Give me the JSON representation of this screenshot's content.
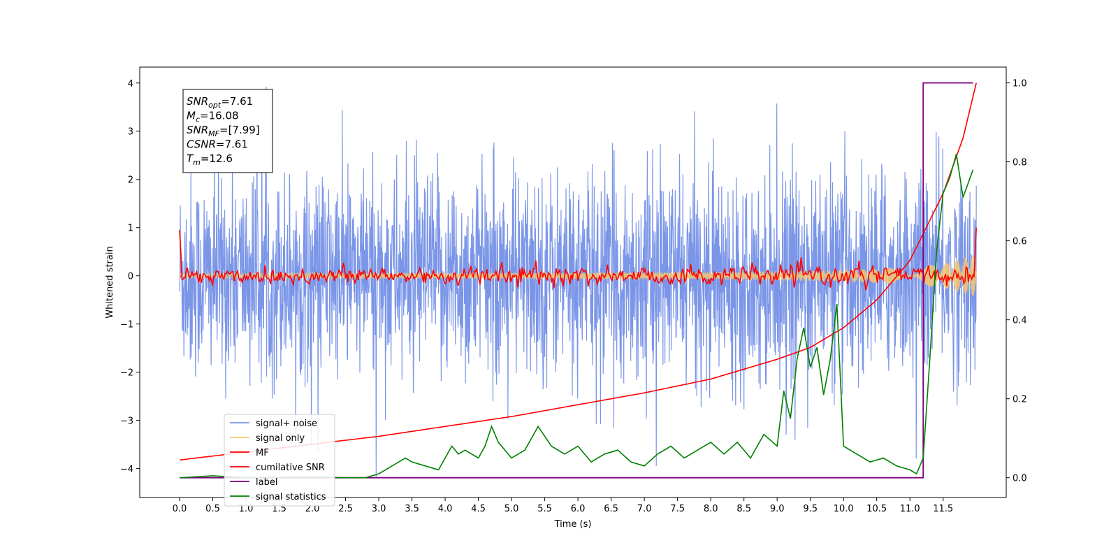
{
  "chart_data": {
    "type": "line",
    "xlabel": "Time (s)",
    "ylabel": "Whitened strain",
    "xlim": [
      -0.6,
      12.45
    ],
    "ylim": [
      -4.6,
      4.33
    ],
    "y2lim": [
      -0.05,
      1.04
    ],
    "xticks": [
      "0.0",
      "0.5",
      "1.0",
      "1.5",
      "2.0",
      "2.5",
      "3.0",
      "3.5",
      "4.0",
      "4.5",
      "5.0",
      "5.5",
      "6.0",
      "6.5",
      "7.0",
      "7.5",
      "8.0",
      "8.5",
      "9.0",
      "9.5",
      "10.0",
      "10.5",
      "11.0",
      "11.5"
    ],
    "yticks": [
      "4",
      "3",
      "2",
      "1",
      "0",
      "−1",
      "−2",
      "−3",
      "−4"
    ],
    "y2ticks": [
      "1.0",
      "0.8",
      "0.6",
      "0.4",
      "0.2",
      "0.0"
    ],
    "info_box": [
      {
        "var": "SNR",
        "sub": "opt",
        "value": "=7.61"
      },
      {
        "var": "M",
        "sub": "c",
        "value": "=16.08"
      },
      {
        "var": "SNR",
        "sub": "MF",
        "value": "=[7.99]"
      },
      {
        "var": "CSNR",
        "sub": "",
        "value": "=7.61"
      },
      {
        "var": "T",
        "sub": "m",
        "value": "=12.6"
      }
    ],
    "legend": {
      "position": "lower-left",
      "entries": [
        {
          "label": "signal+ noise",
          "color": "#7b96e8"
        },
        {
          "label": "signal only",
          "color": "#f5c771"
        },
        {
          "label": "MF",
          "color": "#ff0000"
        },
        {
          "label": "cumilative SNR",
          "color": "#ff0000"
        },
        {
          "label": "label",
          "color": "#800080"
        },
        {
          "label": "signal statistics",
          "color": "#008000"
        }
      ]
    },
    "series": [
      {
        "name": "signal+ noise",
        "axis": "left",
        "note": "noise band roughly between -2.5 and 2.5 with spikes up to 3.9 and down to -4.2",
        "x_range": [
          0,
          12.0
        ],
        "amplitude": 1.6
      },
      {
        "name": "signal only",
        "axis": "left",
        "note": "chirp with growing envelope",
        "envelope": {
          "x": [
            0,
            4,
            8,
            10,
            11,
            11.5,
            12.0
          ],
          "y": [
            0.05,
            0.06,
            0.08,
            0.12,
            0.18,
            0.25,
            0.45
          ]
        }
      },
      {
        "name": "MF",
        "axis": "left",
        "note": "matched-filter output oscillating around 0",
        "start_value": 0.95,
        "end_value": 1.0
      },
      {
        "name": "cumilative SNR",
        "axis": "right",
        "x": [
          0,
          1,
          2,
          3,
          4,
          5,
          6,
          7,
          8,
          9,
          9.5,
          10,
          10.5,
          11,
          11.5,
          11.8,
          12.0
        ],
        "y": [
          0.045,
          0.065,
          0.085,
          0.105,
          0.13,
          0.155,
          0.185,
          0.215,
          0.25,
          0.3,
          0.33,
          0.38,
          0.45,
          0.55,
          0.72,
          0.86,
          1.0
        ]
      },
      {
        "name": "label",
        "axis": "right",
        "x": [
          0,
          11.2,
          11.2,
          11.95
        ],
        "y": [
          0.0,
          0.0,
          1.0,
          1.0
        ]
      },
      {
        "name": "signal statistics",
        "axis": "right",
        "x": [
          0,
          0.5,
          1.0,
          2.0,
          2.5,
          2.8,
          3.0,
          3.2,
          3.4,
          3.5,
          3.7,
          3.9,
          4.1,
          4.2,
          4.3,
          4.5,
          4.6,
          4.7,
          4.8,
          4.9,
          5.0,
          5.2,
          5.4,
          5.6,
          5.8,
          6.0,
          6.2,
          6.4,
          6.6,
          6.8,
          7.0,
          7.2,
          7.4,
          7.6,
          7.8,
          8.0,
          8.2,
          8.4,
          8.6,
          8.8,
          9.0,
          9.1,
          9.2,
          9.3,
          9.4,
          9.5,
          9.6,
          9.7,
          9.8,
          9.9,
          10.0,
          10.2,
          10.4,
          10.6,
          10.8,
          11.0,
          11.1,
          11.2,
          11.3,
          11.4,
          11.5,
          11.6,
          11.7,
          11.8,
          11.95
        ],
        "y": [
          0.0,
          0.005,
          0.0,
          0.002,
          0.0,
          0.0,
          0.01,
          0.03,
          0.05,
          0.04,
          0.03,
          0.02,
          0.08,
          0.06,
          0.07,
          0.05,
          0.08,
          0.13,
          0.09,
          0.07,
          0.05,
          0.07,
          0.13,
          0.08,
          0.06,
          0.08,
          0.04,
          0.06,
          0.07,
          0.04,
          0.03,
          0.06,
          0.08,
          0.05,
          0.07,
          0.09,
          0.06,
          0.09,
          0.05,
          0.11,
          0.08,
          0.22,
          0.15,
          0.3,
          0.38,
          0.28,
          0.33,
          0.21,
          0.3,
          0.44,
          0.08,
          0.06,
          0.04,
          0.05,
          0.03,
          0.02,
          0.01,
          0.05,
          0.3,
          0.57,
          0.72,
          0.76,
          0.82,
          0.71,
          0.78
        ]
      }
    ]
  }
}
